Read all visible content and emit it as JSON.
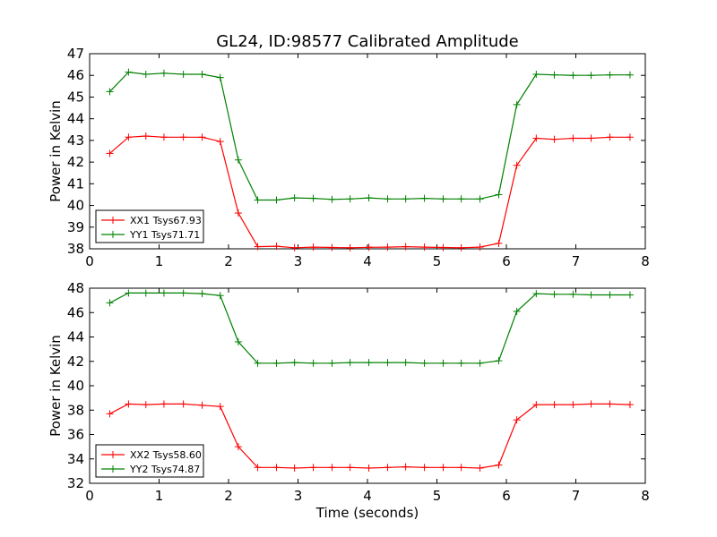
{
  "figure": {
    "title": "GL24, ID:98577 Calibrated Amplitude"
  },
  "chart_data": [
    {
      "type": "line",
      "title": "GL24, ID:98577 Calibrated Amplitude",
      "xlabel": "",
      "ylabel": "Power in Kelvin",
      "xlim": [
        0,
        8
      ],
      "ylim": [
        38,
        47
      ],
      "xticks": [
        "0",
        "1",
        "2",
        "3",
        "4",
        "5",
        "6",
        "7",
        "8"
      ],
      "yticks": [
        "38",
        "39",
        "40",
        "41",
        "42",
        "43",
        "44",
        "45",
        "46",
        "47"
      ],
      "legend_position": "lower-left",
      "x": [
        0.29,
        0.56,
        0.81,
        1.07,
        1.35,
        1.62,
        1.88,
        2.14,
        2.42,
        2.69,
        2.95,
        3.22,
        3.49,
        3.75,
        4.02,
        4.29,
        4.55,
        4.82,
        5.09,
        5.35,
        5.62,
        5.89,
        6.15,
        6.43,
        6.69,
        6.96,
        7.22,
        7.49,
        7.78
      ],
      "series": [
        {
          "name": "XX1 Tsys67.93",
          "color": "#ff0000",
          "values": [
            42.4,
            43.15,
            43.2,
            43.15,
            43.15,
            43.15,
            42.95,
            39.65,
            38.1,
            38.12,
            38.05,
            38.08,
            38.06,
            38.05,
            38.07,
            38.08,
            38.1,
            38.08,
            38.06,
            38.05,
            38.08,
            38.25,
            41.85,
            43.1,
            43.05,
            43.1,
            43.1,
            43.15,
            43.15
          ]
        },
        {
          "name": "YY1 Tsys71.71",
          "color": "#008000",
          "values": [
            45.25,
            46.15,
            46.05,
            46.1,
            46.05,
            46.05,
            45.9,
            42.1,
            40.25,
            40.25,
            40.35,
            40.33,
            40.28,
            40.3,
            40.35,
            40.3,
            40.3,
            40.33,
            40.3,
            40.3,
            40.3,
            40.5,
            44.65,
            46.05,
            46.02,
            46.0,
            46.0,
            46.02,
            46.02
          ]
        }
      ]
    },
    {
      "type": "line",
      "title": "",
      "xlabel": "Time (seconds)",
      "ylabel": "Power in Kelvin",
      "xlim": [
        0,
        8
      ],
      "ylim": [
        32,
        48
      ],
      "xticks": [
        "0",
        "1",
        "2",
        "3",
        "4",
        "5",
        "6",
        "7",
        "8"
      ],
      "yticks": [
        "32",
        "34",
        "36",
        "38",
        "40",
        "42",
        "44",
        "46",
        "48"
      ],
      "legend_position": "lower-left",
      "x": [
        0.29,
        0.56,
        0.81,
        1.07,
        1.35,
        1.62,
        1.88,
        2.14,
        2.42,
        2.69,
        2.95,
        3.22,
        3.49,
        3.75,
        4.02,
        4.29,
        4.55,
        4.82,
        5.09,
        5.35,
        5.62,
        5.89,
        6.15,
        6.43,
        6.69,
        6.96,
        7.22,
        7.49,
        7.78
      ],
      "series": [
        {
          "name": "XX2 Tsys58.60",
          "color": "#ff0000",
          "values": [
            37.7,
            38.5,
            38.45,
            38.5,
            38.5,
            38.4,
            38.3,
            35.0,
            33.3,
            33.3,
            33.25,
            33.3,
            33.3,
            33.3,
            33.25,
            33.3,
            33.35,
            33.3,
            33.3,
            33.3,
            33.25,
            33.5,
            37.2,
            38.45,
            38.45,
            38.45,
            38.5,
            38.5,
            38.45
          ]
        },
        {
          "name": "YY2 Tsys74.87",
          "color": "#008000",
          "values": [
            46.8,
            47.6,
            47.6,
            47.6,
            47.6,
            47.55,
            47.4,
            43.6,
            41.85,
            41.85,
            41.9,
            41.85,
            41.85,
            41.9,
            41.9,
            41.9,
            41.9,
            41.85,
            41.85,
            41.85,
            41.85,
            42.05,
            46.1,
            47.55,
            47.5,
            47.5,
            47.45,
            47.45,
            47.45
          ]
        }
      ]
    }
  ]
}
